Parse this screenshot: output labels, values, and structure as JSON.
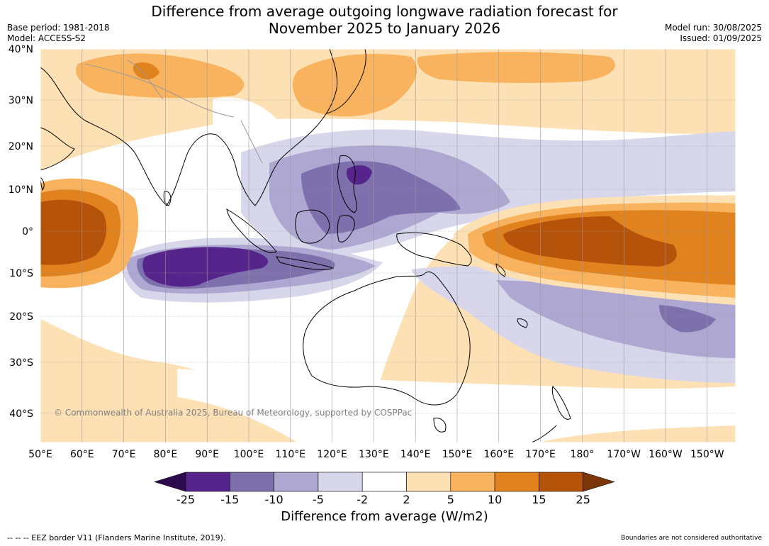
{
  "title": {
    "line1": "Difference from average outgoing longwave radiation forecast for",
    "line2": "November 2025 to January 2026"
  },
  "meta": {
    "base_period": "Base period: 1981-2018",
    "model": "Model: ACCESS-S2",
    "model_run": "Model run: 30/08/2025",
    "issued": "Issued: 01/09/2025"
  },
  "copyright": "© Commonwealth of Australia 2025, Bureau of Meteorology, supported by COSPPac",
  "axes": {
    "lon_labels": [
      "50°E",
      "60°E",
      "70°E",
      "80°E",
      "90°E",
      "100°E",
      "110°E",
      "120°E",
      "130°E",
      "140°E",
      "150°E",
      "160°E",
      "170°E",
      "180°",
      "170°W",
      "160°W",
      "150°W"
    ],
    "lat_labels": [
      "40°N",
      "30°N",
      "20°N",
      "10°N",
      "0°",
      "10°S",
      "20°S",
      "30°S",
      "40°S"
    ]
  },
  "colorbar": {
    "label": "Difference from average (W/m2)",
    "ticks": [
      "-25",
      "-15",
      "-10",
      "-5",
      "-2",
      "2",
      "5",
      "10",
      "15",
      "25"
    ],
    "colors": [
      "#2d0a4e",
      "#56258c",
      "#7e6fad",
      "#aea7d1",
      "#d7d6ea",
      "#ffffff",
      "#fde0b4",
      "#f9b35e",
      "#e0821e",
      "#b45309",
      "#7b3508"
    ]
  },
  "footer": {
    "left": "--  --  -- EEZ border V11 (Flanders Marine Institute, 2019).",
    "right": "Boundaries are not considered authoritative"
  },
  "map_colors": {
    "ocean": "#ffffff",
    "coast": "#000000",
    "border": "#9a9a9a",
    "grid": "#9a9a9a"
  }
}
